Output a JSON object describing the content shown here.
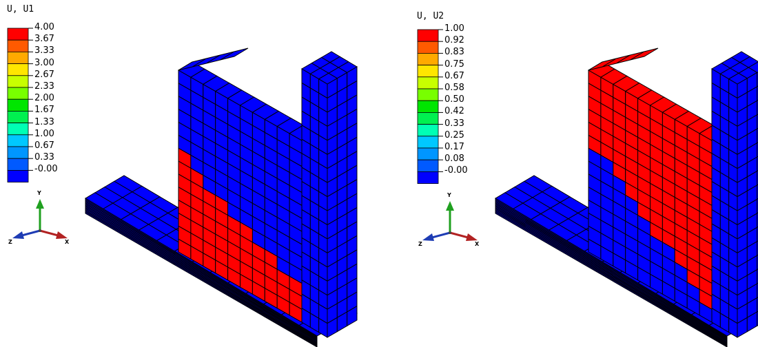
{
  "colors": {
    "mesh_blue": "#0000ff",
    "mesh_red": "#ff0000",
    "edge": "#000000",
    "axis_x": "#b22222",
    "axis_y": "#20a020",
    "axis_z": "#1e3cb4"
  },
  "panels": [
    {
      "legend": {
        "title": "U, U1",
        "labels": [
          "4.00",
          "3.67",
          "3.33",
          "3.00",
          "2.67",
          "2.33",
          "2.00",
          "1.67",
          "1.33",
          "1.00",
          "0.67",
          "0.33",
          "-0.00"
        ],
        "colors": [
          "#ff0000",
          "#ff5a00",
          "#ffaa00",
          "#ffe600",
          "#c8ff00",
          "#78ff00",
          "#00e600",
          "#00f050",
          "#00ffb4",
          "#00c8ff",
          "#0096ff",
          "#005aff",
          "#0000ff"
        ]
      },
      "triad": {
        "x": "X",
        "y": "Y",
        "z": "Z"
      },
      "red_region": "lower-triangle"
    },
    {
      "legend": {
        "title": "U, U2",
        "labels": [
          "1.00",
          "0.92",
          "0.83",
          "0.75",
          "0.67",
          "0.58",
          "0.50",
          "0.42",
          "0.33",
          "0.25",
          "0.17",
          "0.08",
          "-0.00"
        ],
        "colors": [
          "#ff0000",
          "#ff5a00",
          "#ffaa00",
          "#ffe600",
          "#c8ff00",
          "#78ff00",
          "#00e600",
          "#00f050",
          "#00ffb4",
          "#00c8ff",
          "#0096ff",
          "#005aff",
          "#0000ff"
        ]
      },
      "triad": {
        "x": "X",
        "y": "Y",
        "z": "Z"
      },
      "red_region": "upper-region"
    }
  ]
}
